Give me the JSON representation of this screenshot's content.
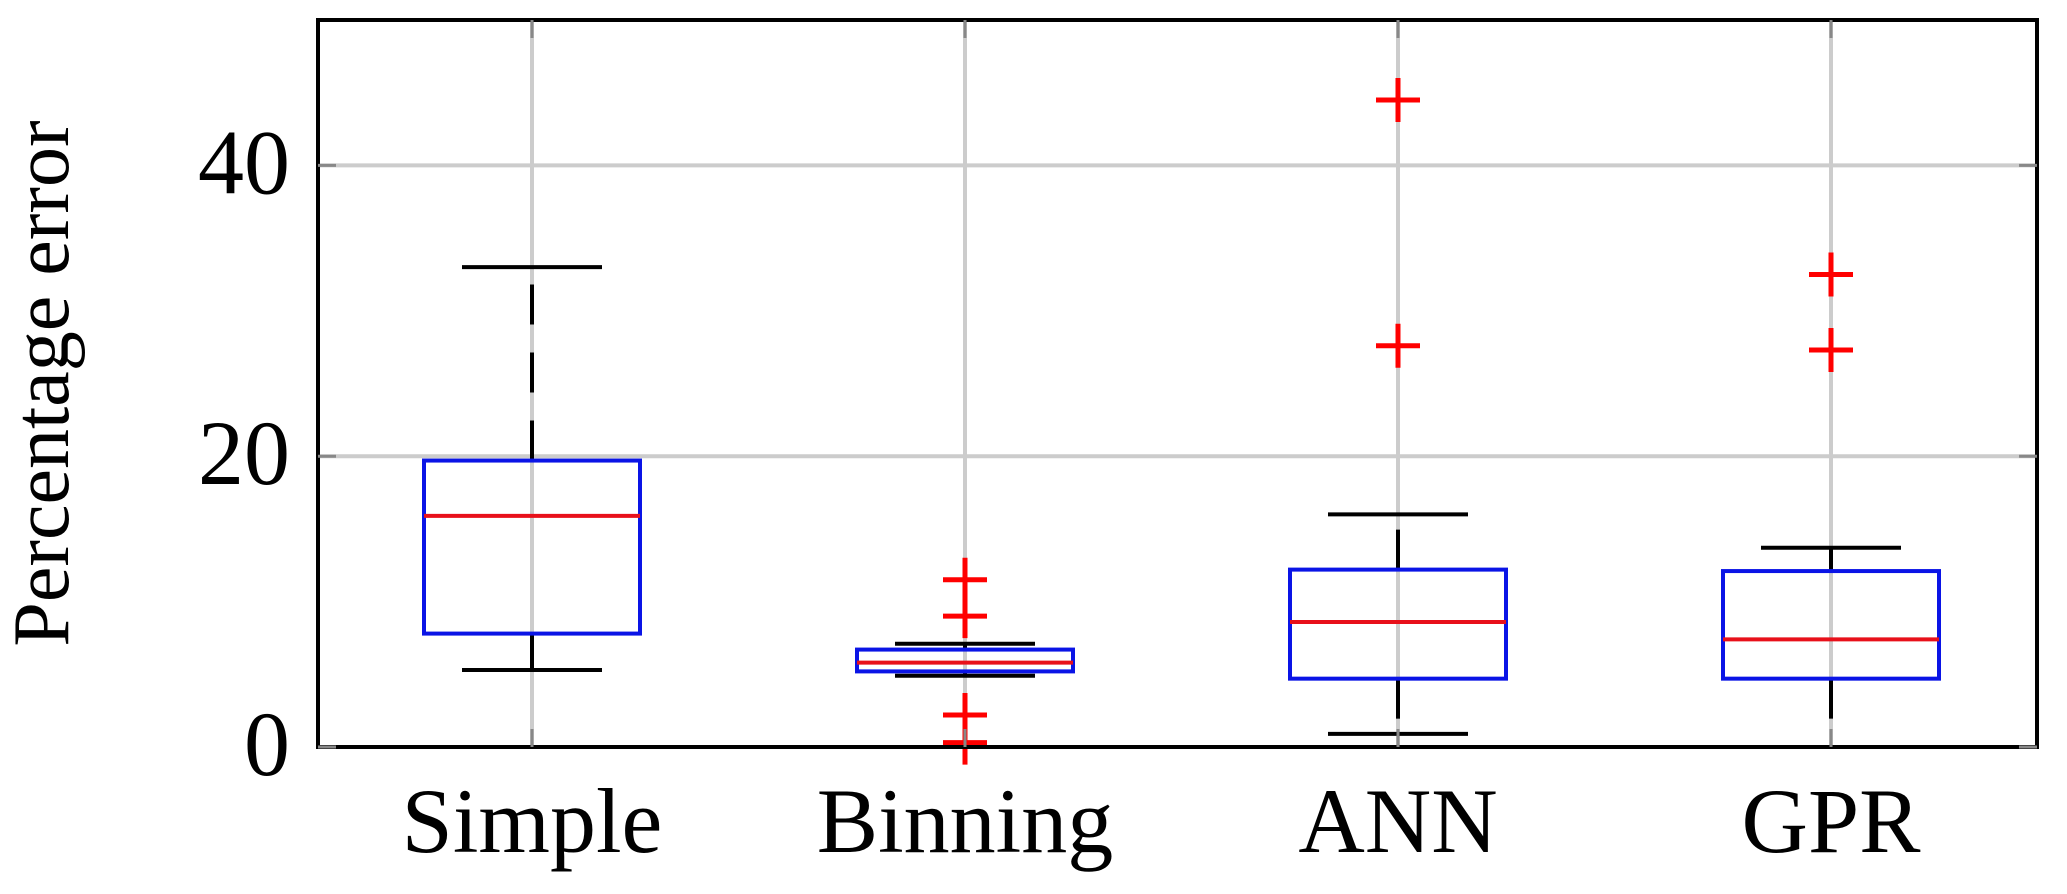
{
  "chart_data": {
    "type": "box",
    "ylabel": "Percentage error",
    "ylim": [
      0,
      50
    ],
    "yticks": [
      "0",
      "20",
      "40"
    ],
    "grid": true,
    "categories": [
      "Simple",
      "Binning",
      "ANN",
      "GPR"
    ],
    "boxes": [
      {
        "category": "Simple",
        "whisker_low": 5.3,
        "q1": 7.8,
        "median": 15.9,
        "q3": 19.7,
        "whisker_high": 33.0,
        "outliers": []
      },
      {
        "category": "Binning",
        "whisker_low": 4.9,
        "q1": 5.2,
        "median": 5.8,
        "q3": 6.7,
        "whisker_high": 7.1,
        "outliers": [
          11.5,
          9.0,
          2.2,
          0.3
        ]
      },
      {
        "category": "ANN",
        "whisker_low": 0.9,
        "q1": 4.7,
        "median": 8.6,
        "q3": 12.2,
        "whisker_high": 16.0,
        "outliers": [
          44.5,
          27.6
        ]
      },
      {
        "category": "GPR",
        "whisker_low": 0.0,
        "q1": 4.7,
        "median": 7.4,
        "q3": 12.1,
        "whisker_high": 13.7,
        "outliers": [
          32.5,
          27.3
        ]
      }
    ],
    "colors": {
      "box": "#0a14e6",
      "median": "#e8101a",
      "outlier": "#ff0000",
      "whisker": "#000000",
      "grid": "#cccccc"
    }
  }
}
